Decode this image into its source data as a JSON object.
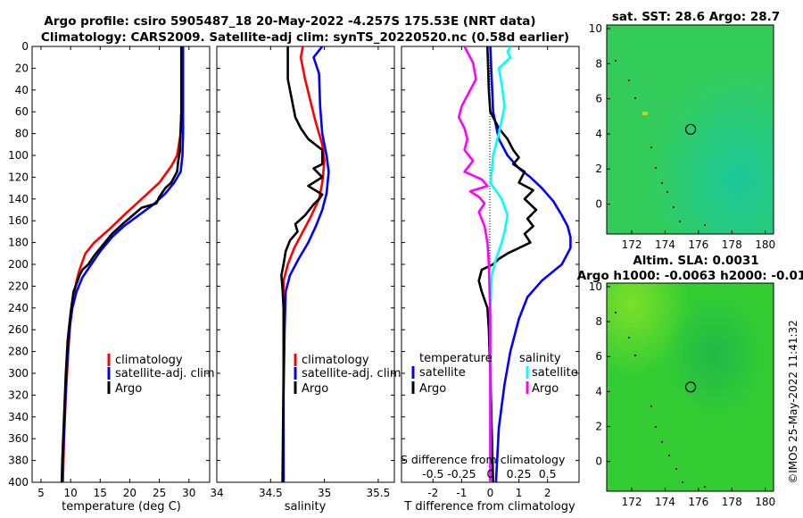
{
  "header": {
    "title_line1": "Argo profile: csiro 5905487_18 20-May-2022 -4.257S 175.53E (NRT data)",
    "title_line2": "Climatology: CARS2009. Satellite-adj clim: synTS_20220520.nc (0.58d earlier)"
  },
  "colors": {
    "climatology": "#ff0000",
    "satellite": "#0000ff",
    "argo": "#000000",
    "sal_satellite_diff": "#00ffff",
    "sal_argo_diff": "#ff00ff"
  },
  "chart_data": [
    {
      "type": "line",
      "id": "temperature",
      "xlabel": "temperature (deg C)",
      "xlim": [
        3.5,
        33.5
      ],
      "ylim": [
        0,
        400
      ],
      "y_reversed": true,
      "xticks": [
        5,
        10,
        15,
        20,
        25,
        30
      ],
      "yticks": [
        0,
        20,
        40,
        60,
        80,
        100,
        120,
        140,
        160,
        180,
        200,
        220,
        240,
        260,
        280,
        300,
        320,
        340,
        360,
        380,
        400
      ],
      "legend": [
        "climatology",
        "satellite-adj. clim",
        "Argo"
      ],
      "series": [
        {
          "name": "climatology",
          "color_key": "climatology",
          "points": [
            [
              28.9,
              0
            ],
            [
              28.9,
              50
            ],
            [
              28.6,
              80
            ],
            [
              28.0,
              100
            ],
            [
              27.0,
              110
            ],
            [
              25.0,
              125
            ],
            [
              22.0,
              140
            ],
            [
              19.0,
              155
            ],
            [
              16.5,
              168
            ],
            [
              14.0,
              180
            ],
            [
              12.5,
              190
            ],
            [
              11.5,
              205
            ],
            [
              11.0,
              215
            ],
            [
              10.5,
              230
            ],
            [
              10.0,
              250
            ],
            [
              9.6,
              280
            ],
            [
              9.2,
              320
            ],
            [
              8.9,
              360
            ],
            [
              8.7,
              400
            ]
          ]
        },
        {
          "name": "satellite-adj. clim",
          "color_key": "satellite",
          "points": [
            [
              29.0,
              0
            ],
            [
              29.0,
              80
            ],
            [
              28.9,
              100
            ],
            [
              28.6,
              115
            ],
            [
              27.5,
              125
            ],
            [
              26.0,
              135
            ],
            [
              24.0,
              145
            ],
            [
              21.5,
              155
            ],
            [
              19.0,
              165
            ],
            [
              17.0,
              175
            ],
            [
              15.0,
              188
            ],
            [
              13.5,
              200
            ],
            [
              12.0,
              212
            ],
            [
              11.0,
              225
            ],
            [
              10.3,
              240
            ],
            [
              9.8,
              260
            ],
            [
              9.3,
              300
            ],
            [
              9.0,
              340
            ],
            [
              8.7,
              380
            ],
            [
              8.6,
              400
            ]
          ]
        },
        {
          "name": "Argo",
          "color_key": "argo",
          "points": [
            [
              28.7,
              0
            ],
            [
              28.7,
              60
            ],
            [
              28.5,
              90
            ],
            [
              28.5,
              95
            ],
            [
              28.2,
              105
            ],
            [
              28.0,
              115
            ],
            [
              27.0,
              125
            ],
            [
              26.0,
              130
            ],
            [
              25.0,
              138
            ],
            [
              24.5,
              144
            ],
            [
              22.0,
              148
            ],
            [
              20.5,
              155
            ],
            [
              19.0,
              162
            ],
            [
              17.0,
              172
            ],
            [
              15.5,
              182
            ],
            [
              14.0,
              192
            ],
            [
              13.0,
              200
            ],
            [
              12.0,
              205
            ],
            [
              11.5,
              210
            ],
            [
              11.2,
              215
            ],
            [
              10.5,
              225
            ],
            [
              10.0,
              245
            ],
            [
              9.5,
              270
            ],
            [
              9.2,
              300
            ],
            [
              8.9,
              340
            ],
            [
              8.6,
              380
            ],
            [
              8.5,
              400
            ]
          ]
        }
      ]
    },
    {
      "type": "line",
      "id": "salinity",
      "xlabel": "salinity",
      "xlim": [
        34,
        35.65
      ],
      "ylim": [
        0,
        400
      ],
      "y_reversed": true,
      "xticks": [
        34,
        34.5,
        35,
        35.5
      ],
      "legend": [
        "climatology",
        "satellite-adj. clim",
        "Argo"
      ],
      "series": [
        {
          "name": "climatology",
          "color_key": "climatology",
          "points": [
            [
              34.8,
              0
            ],
            [
              34.78,
              10
            ],
            [
              34.82,
              30
            ],
            [
              34.87,
              50
            ],
            [
              34.92,
              70
            ],
            [
              34.98,
              90
            ],
            [
              35.0,
              105
            ],
            [
              34.98,
              125
            ],
            [
              34.95,
              140
            ],
            [
              34.88,
              155
            ],
            [
              34.8,
              170
            ],
            [
              34.72,
              185
            ],
            [
              34.66,
              200
            ],
            [
              34.62,
              215
            ],
            [
              34.62,
              240
            ],
            [
              34.62,
              300
            ],
            [
              34.62,
              400
            ]
          ]
        },
        {
          "name": "satellite-adj. clim",
          "color_key": "satellite",
          "points": [
            [
              34.98,
              0
            ],
            [
              34.9,
              10
            ],
            [
              34.95,
              25
            ],
            [
              34.96,
              55
            ],
            [
              34.98,
              80
            ],
            [
              35.02,
              100
            ],
            [
              35.04,
              115
            ],
            [
              35.02,
              135
            ],
            [
              34.98,
              150
            ],
            [
              34.92,
              165
            ],
            [
              34.85,
              180
            ],
            [
              34.76,
              195
            ],
            [
              34.68,
              210
            ],
            [
              34.64,
              225
            ],
            [
              34.63,
              260
            ],
            [
              34.62,
              320
            ],
            [
              34.62,
              400
            ]
          ]
        },
        {
          "name": "Argo",
          "color_key": "argo",
          "points": [
            [
              34.66,
              0
            ],
            [
              34.66,
              30
            ],
            [
              34.7,
              50
            ],
            [
              34.73,
              65
            ],
            [
              34.78,
              75
            ],
            [
              34.85,
              85
            ],
            [
              34.98,
              95
            ],
            [
              34.98,
              108
            ],
            [
              34.9,
              112
            ],
            [
              34.98,
              120
            ],
            [
              34.85,
              128
            ],
            [
              34.98,
              136
            ],
            [
              34.95,
              140
            ],
            [
              34.9,
              145
            ],
            [
              34.82,
              155
            ],
            [
              34.73,
              163
            ],
            [
              34.75,
              170
            ],
            [
              34.68,
              178
            ],
            [
              34.64,
              188
            ],
            [
              34.62,
              200
            ],
            [
              34.6,
              210
            ],
            [
              34.61,
              222
            ],
            [
              34.62,
              240
            ],
            [
              34.62,
              300
            ],
            [
              34.61,
              400
            ]
          ]
        }
      ]
    },
    {
      "type": "line",
      "id": "difference",
      "xlabel": "T difference from climatology",
      "xlabel2": "S difference from climatology",
      "xlim": [
        -3.1,
        3.1
      ],
      "ylim": [
        0,
        400
      ],
      "y_reversed": true,
      "xticks": [
        -2,
        -1,
        0,
        1,
        2
      ],
      "s_ticks": [
        "-0.5",
        "-0.25",
        "0",
        "0.25",
        "0.5"
      ],
      "s_ticks_values": [
        -0.5,
        -0.25,
        0,
        0.25,
        0.5
      ],
      "s_scale": 4,
      "legend_left_title": "temperature",
      "legend_right_title": "salinity",
      "legend_left": [
        "satellite",
        "Argo"
      ],
      "legend_right": [
        "satellite",
        "Argo"
      ],
      "series": [
        {
          "name": "T satellite",
          "color_key": "satellite",
          "points": [
            [
              0,
              0
            ],
            [
              0.05,
              30
            ],
            [
              0.1,
              60
            ],
            [
              0.3,
              85
            ],
            [
              0.6,
              100
            ],
            [
              1.0,
              112
            ],
            [
              1.4,
              120
            ],
            [
              1.8,
              130
            ],
            [
              2.2,
              142
            ],
            [
              2.5,
              155
            ],
            [
              2.7,
              165
            ],
            [
              2.8,
              175
            ],
            [
              2.8,
              185
            ],
            [
              2.5,
              200
            ],
            [
              1.8,
              215
            ],
            [
              1.3,
              230
            ],
            [
              1.0,
              250
            ],
            [
              0.7,
              280
            ],
            [
              0.5,
              310
            ],
            [
              0.3,
              350
            ],
            [
              0.2,
              400
            ]
          ]
        },
        {
          "name": "T Argo",
          "color_key": "argo",
          "points": [
            [
              -0.1,
              0
            ],
            [
              -0.05,
              40
            ],
            [
              0.0,
              60
            ],
            [
              0.3,
              75
            ],
            [
              0.6,
              85
            ],
            [
              0.8,
              95
            ],
            [
              1.0,
              102
            ],
            [
              0.8,
              108
            ],
            [
              1.2,
              115
            ],
            [
              1.0,
              125
            ],
            [
              1.5,
              132
            ],
            [
              1.2,
              140
            ],
            [
              1.6,
              150
            ],
            [
              1.3,
              158
            ],
            [
              1.5,
              165
            ],
            [
              1.2,
              172
            ],
            [
              1.4,
              180
            ],
            [
              1.0,
              185
            ],
            [
              0.6,
              190
            ],
            [
              0.3,
              195
            ],
            [
              0.1,
              200
            ],
            [
              -0.3,
              205
            ],
            [
              -0.4,
              215
            ],
            [
              -0.3,
              225
            ],
            [
              -0.1,
              240
            ],
            [
              -0.05,
              260
            ],
            [
              0.0,
              300
            ],
            [
              0.05,
              350
            ],
            [
              0.1,
              400
            ]
          ]
        },
        {
          "name": "S satellite",
          "color_key": "sal_satellite_diff",
          "points": [
            [
              0.7,
              0
            ],
            [
              0.6,
              5
            ],
            [
              0.7,
              10
            ],
            [
              0.5,
              15
            ],
            [
              0.3,
              20
            ],
            [
              0.4,
              35
            ],
            [
              0.5,
              55
            ],
            [
              0.3,
              80
            ],
            [
              0.1,
              100
            ],
            [
              0.05,
              115
            ],
            [
              0.0,
              125
            ],
            [
              0.4,
              140
            ],
            [
              0.6,
              155
            ],
            [
              0.5,
              170
            ],
            [
              0.4,
              180
            ],
            [
              0.2,
              195
            ],
            [
              0.05,
              210
            ],
            [
              0.0,
              240
            ],
            [
              0.0,
              300
            ],
            [
              0.0,
              400
            ]
          ]
        },
        {
          "name": "S Argo",
          "color_key": "sal_argo_diff",
          "points": [
            [
              -0.9,
              0
            ],
            [
              -0.6,
              15
            ],
            [
              -0.5,
              30
            ],
            [
              -0.8,
              45
            ],
            [
              -1.0,
              55
            ],
            [
              -1.1,
              65
            ],
            [
              -0.9,
              75
            ],
            [
              -0.8,
              85
            ],
            [
              -0.9,
              95
            ],
            [
              -0.6,
              105
            ],
            [
              -0.9,
              115
            ],
            [
              -0.3,
              122
            ],
            [
              -0.1,
              128
            ],
            [
              -0.7,
              133
            ],
            [
              -0.4,
              138
            ],
            [
              -0.2,
              144
            ],
            [
              -0.4,
              152
            ],
            [
              -0.2,
              165
            ],
            [
              -0.1,
              180
            ],
            [
              -0.05,
              200
            ],
            [
              0.0,
              250
            ],
            [
              0.0,
              400
            ]
          ]
        }
      ]
    },
    {
      "type": "heatmap",
      "id": "sst_map",
      "title": "sat. SST: 28.6 Argo: 28.7",
      "xticks": [
        172,
        174,
        176,
        178,
        180
      ],
      "yticks": [
        0,
        2,
        4,
        6,
        8,
        10
      ],
      "xlim": [
        170.5,
        180.5
      ],
      "ylim": [
        -1.7,
        10.2
      ],
      "argo_position": [
        175.53,
        4.26
      ]
    },
    {
      "type": "heatmap",
      "id": "sla_map",
      "title": "Altim. SLA: 0.0031",
      "subtitle": "Argo h1000: -0.0063 h2000: -0.01",
      "xticks": [
        172,
        174,
        176,
        178,
        180
      ],
      "yticks": [
        0,
        2,
        4,
        6,
        8,
        10
      ],
      "xlim": [
        170.5,
        180.5
      ],
      "ylim": [
        -1.7,
        10.2
      ],
      "argo_position": [
        175.53,
        4.26
      ]
    }
  ],
  "credit": "©IMOS 25-May-2022 11:41:32"
}
